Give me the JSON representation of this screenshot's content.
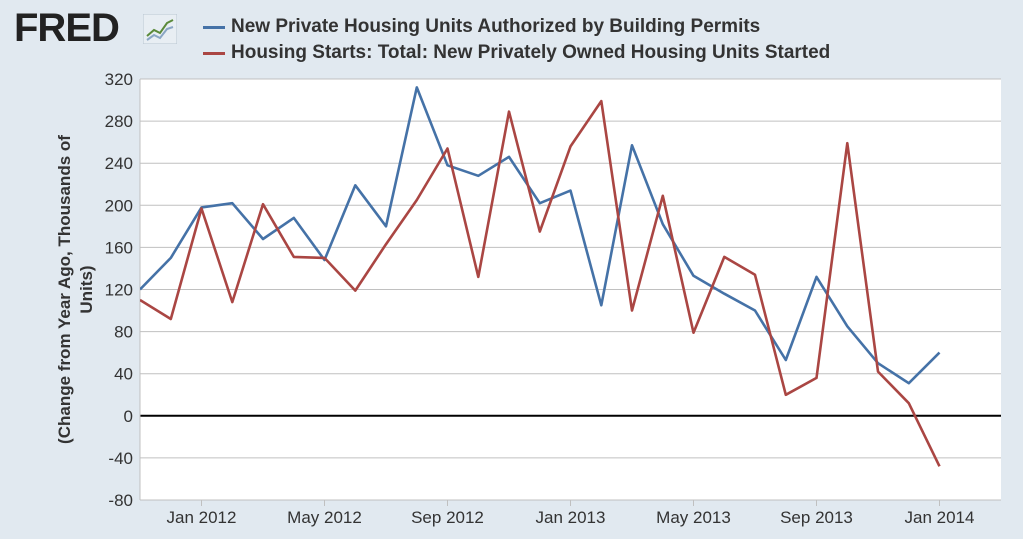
{
  "header": {
    "logo_text": "FRED",
    "logo_icon": "line-chart-icon"
  },
  "chart_data": {
    "type": "line",
    "title": "",
    "xlabel": "",
    "ylabel": "(Change from Year Ago, Thousands of Units)",
    "ylim": [
      -80,
      320
    ],
    "yticks": [
      320,
      280,
      240,
      200,
      160,
      120,
      80,
      40,
      0,
      -40,
      -80
    ],
    "x_tick_labels": [
      "Jan 2012",
      "May 2012",
      "Sep 2012",
      "Jan 2013",
      "May 2013",
      "Sep 2013",
      "Jan 2014"
    ],
    "grid": true,
    "zero_line": true,
    "legend": "top",
    "x": [
      "2011-11",
      "2011-12",
      "2012-01",
      "2012-02",
      "2012-03",
      "2012-04",
      "2012-05",
      "2012-06",
      "2012-07",
      "2012-08",
      "2012-09",
      "2012-10",
      "2012-11",
      "2012-12",
      "2013-01",
      "2013-02",
      "2013-03",
      "2013-04",
      "2013-05",
      "2013-06",
      "2013-07",
      "2013-08",
      "2013-09",
      "2013-10",
      "2013-11",
      "2013-12",
      "2014-01",
      "2014-02",
      "2014-03"
    ],
    "series": [
      {
        "name": "New Private Housing Units Authorized by Building Permits",
        "color": "#4572a7",
        "values": [
          120,
          150,
          198,
          202,
          168,
          188,
          148,
          219,
          180,
          312,
          238,
          228,
          246,
          202,
          214,
          105,
          257,
          182,
          133,
          116,
          100,
          53,
          132,
          85,
          50,
          31,
          60,
          null,
          null
        ]
      },
      {
        "name": "Housing Starts: Total: New Privately Owned Housing Units Started",
        "color": "#aa4643",
        "values": [
          110,
          92,
          197,
          108,
          201,
          151,
          150,
          119,
          163,
          205,
          254,
          132,
          289,
          175,
          256,
          299,
          100,
          209,
          79,
          151,
          134,
          20,
          36,
          259,
          42,
          12,
          -48,
          null,
          null
        ]
      }
    ]
  }
}
